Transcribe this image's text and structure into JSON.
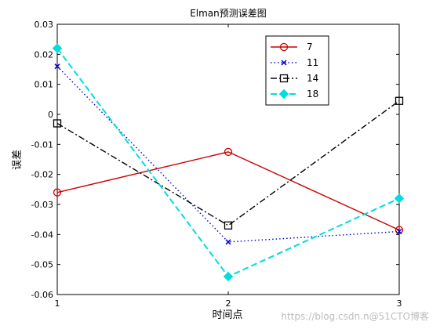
{
  "chart_data": {
    "type": "line",
    "title": "Elman预测误差图",
    "xlabel": "时间点",
    "ylabel": "误差",
    "xlim": [
      1,
      3
    ],
    "ylim": [
      -0.06,
      0.03
    ],
    "x": [
      1,
      2,
      3
    ],
    "x_tick_labels": [
      "1",
      "2",
      "3"
    ],
    "y_ticks": [
      0.03,
      0.02,
      0.01,
      0,
      -0.01,
      -0.02,
      -0.03,
      -0.04,
      -0.05,
      -0.06
    ],
    "y_tick_labels": [
      "0.03",
      "0.02",
      "0.01",
      "0",
      "-0.01",
      "-0.02",
      "-0.03",
      "-0.04",
      "-0.05",
      "-0.06"
    ],
    "grid": false,
    "legend_position": "top-right",
    "series": [
      {
        "name": "7",
        "values": [
          -0.026,
          -0.0125,
          -0.0385
        ],
        "color": "#cc0000",
        "dash": "solid",
        "marker": "circle"
      },
      {
        "name": "11",
        "values": [
          0.016,
          -0.0425,
          -0.039
        ],
        "color": "#0000cc",
        "dash": "dotted",
        "marker": "x"
      },
      {
        "name": "14",
        "values": [
          -0.003,
          -0.037,
          0.0045
        ],
        "color": "#000000",
        "dash": "dash-dot",
        "marker": "square"
      },
      {
        "name": "18",
        "values": [
          0.022,
          -0.054,
          -0.028
        ],
        "color": "#00dddd",
        "dash": "dashed",
        "marker": "diamond"
      }
    ]
  },
  "watermark": "https://blog.csdn.n@51CTO博客"
}
